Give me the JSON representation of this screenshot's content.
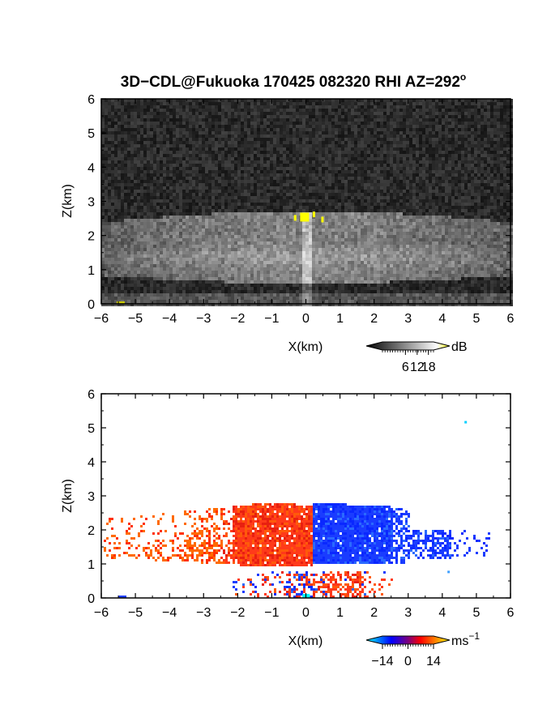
{
  "chart_data": [
    {
      "type": "heatmap",
      "title": "3D−CDL@Fukuoka 170425 082320 RHI AZ=292",
      "title_superscript": "o",
      "xlabel": "X(km)",
      "ylabel": "Z(km)",
      "xlim": [
        -6,
        6
      ],
      "ylim": [
        0,
        6
      ],
      "x_ticks": [
        "−6",
        "−5",
        "−4",
        "−3",
        "−2",
        "−1",
        "0",
        "1",
        "2",
        "3",
        "4",
        "5",
        "6"
      ],
      "y_ticks": [
        "0",
        "1",
        "2",
        "3",
        "4",
        "5",
        "6"
      ],
      "background": "noise (grayscale)",
      "colorbar": {
        "unit": "dB",
        "tick_labels": [
          "6",
          "12",
          "18"
        ],
        "colors": [
          "#000000",
          "#ffffff",
          "#ffff00"
        ]
      },
      "features": {
        "echo_layer_x_km": [
          -6,
          6
        ],
        "echo_layer_z_km": [
          0.6,
          2.8
        ],
        "bright_spot": {
          "x": -0.05,
          "z": 2.55
        }
      }
    },
    {
      "type": "heatmap",
      "xlabel": "X(km)",
      "ylabel": "Z(km)",
      "xlim": [
        -6,
        6
      ],
      "ylim": [
        0,
        6
      ],
      "x_ticks": [
        "−6",
        "−5",
        "−4",
        "−3",
        "−2",
        "−1",
        "0",
        "1",
        "2",
        "3",
        "4",
        "5",
        "6"
      ],
      "y_ticks": [
        "0",
        "1",
        "2",
        "3",
        "4",
        "5",
        "6"
      ],
      "colorbar": {
        "unit": "ms",
        "unit_superscript": "−1",
        "tick_labels": [
          "−14",
          "0",
          "14"
        ],
        "colors": [
          "#00ffff",
          "#0000ff",
          "#ff0000",
          "#ffff00"
        ]
      },
      "features": {
        "positive_velocity_region_x_km": [
          -5.8,
          0.2
        ],
        "negative_velocity_region_x_km": [
          0.2,
          5.3
        ],
        "layer_z_km": [
          0.9,
          2.9
        ],
        "lower_layer_z_km": [
          0,
          0.8
        ],
        "isolated_pixel": {
          "x": 4.65,
          "z": 5.2
        }
      }
    }
  ]
}
